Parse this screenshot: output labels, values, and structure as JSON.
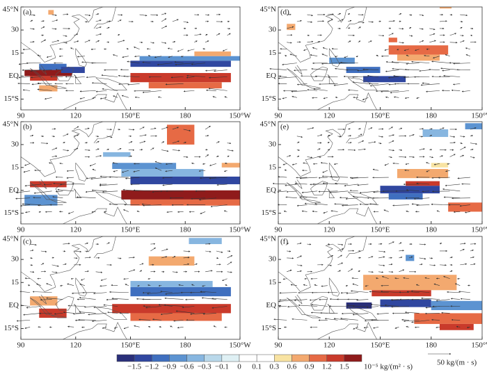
{
  "panels": [
    {
      "label": "(a)"
    },
    {
      "label": "(b)"
    },
    {
      "label": "(c)"
    },
    {
      "label": "(d)"
    },
    {
      "label": "(e)"
    },
    {
      "label": "(f)"
    }
  ],
  "x_ticks": [
    "90",
    "120",
    "150°E",
    "180",
    "150°W"
  ],
  "y_ticks": [
    "45°N",
    "30",
    "15",
    "EQ",
    "15°S"
  ],
  "colorbar": {
    "labels": [
      "−1.5",
      "−1.2",
      "−0.9",
      "−0.6",
      "−0.3",
      "−0.1",
      "0",
      "0.1",
      "0.3",
      "0.6",
      "0.9",
      "1.2",
      "1.5"
    ],
    "unit": "10⁻⁵ kg/(m² · s)"
  },
  "reference_arrow": "50 kg/(m · s)"
}
